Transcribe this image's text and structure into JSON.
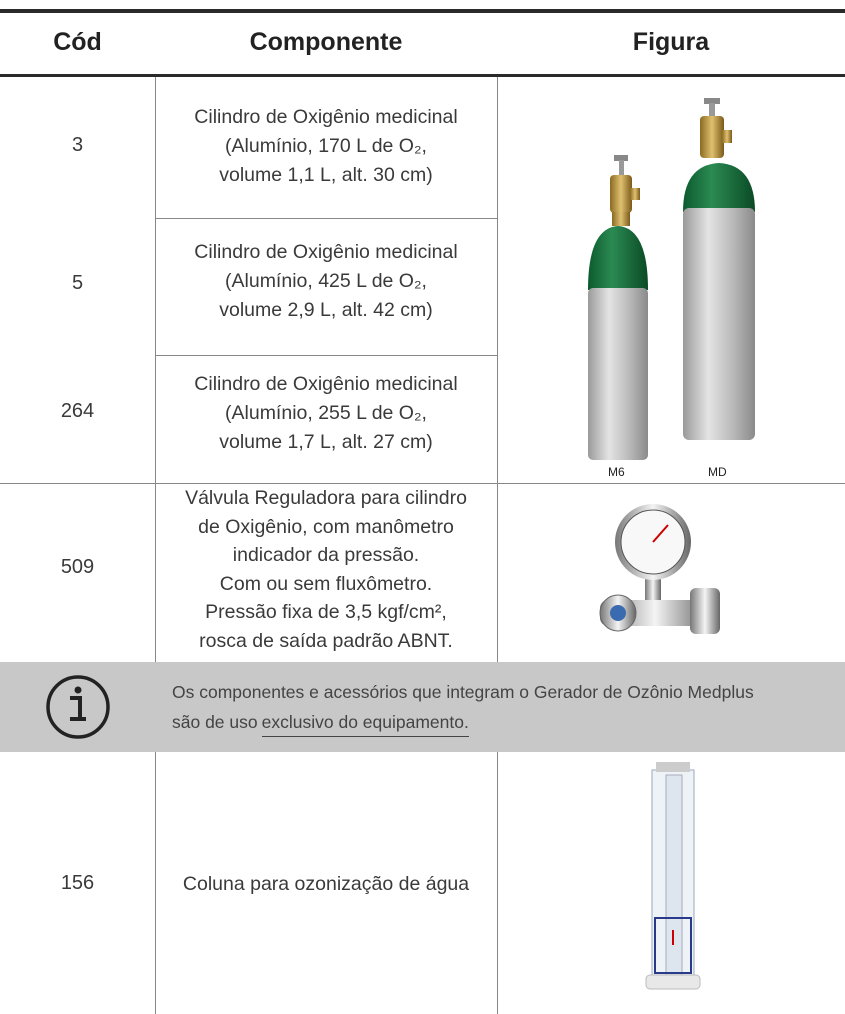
{
  "table": {
    "header": [
      "Cód",
      "Componente",
      "Figura"
    ],
    "rows": [
      {
        "code": "3",
        "component": [
          "Cilindro de Oxigênio medicinal",
          "(Alumínio, 170 L de O₂,",
          "volume 1,1 L, alt. 30 cm)"
        ]
      },
      {
        "code": "5",
        "component": [
          "Cilindro de Oxigênio medicinal",
          "(Alumínio, 425 L de O₂,",
          "volume 2,9 L, alt. 42 cm)"
        ]
      },
      {
        "code": "264",
        "component": [
          "Cilindro de Oxigênio medicinal",
          "(Alumínio, 255 L de O₂,",
          "volume 1,7 L, alt. 27 cm)"
        ]
      },
      {
        "code": "509",
        "component": [
          "Válvula Reguladora para cilindro",
          "de Oxigênio, com manômetro",
          "indicador da pressão.",
          "Com ou sem fluxômetro.",
          "Pressão fixa de 3,5 kgf/cm²,",
          "rosca de saída padrão ABNT."
        ]
      },
      {
        "code": "156",
        "component": [
          "Coluna para ozonização de água"
        ]
      }
    ],
    "figure_labels": [
      "M6",
      "MD"
    ]
  },
  "note": {
    "line1": "Os componentes e acessórios que integram o Gerador de Ozônio Medplus",
    "line2_start": "são de uso",
    "line2_emphasis": "exclusivo do equipamento."
  }
}
